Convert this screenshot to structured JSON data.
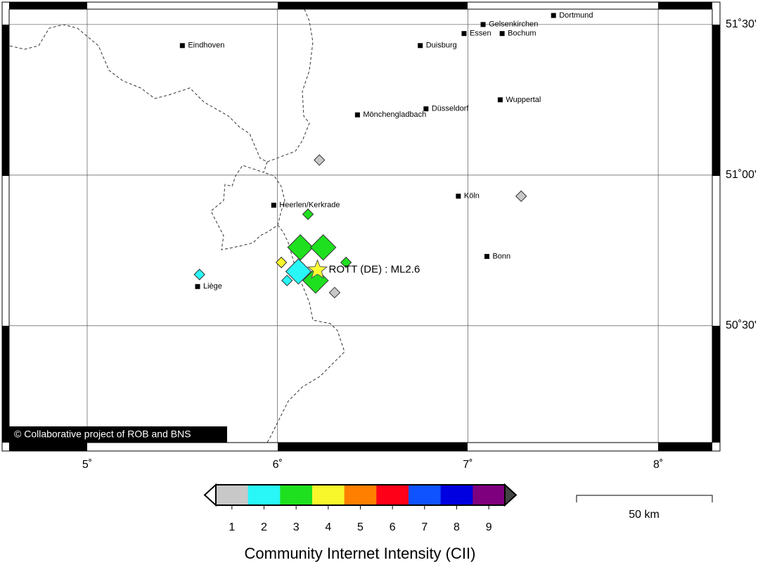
{
  "map": {
    "xlim": [
      4.59,
      8.284
    ],
    "ylim": [
      50.112,
      51.551
    ],
    "xticks": [
      {
        "value": 5,
        "label": "5˚"
      },
      {
        "value": 6,
        "label": "6˚"
      },
      {
        "value": 7,
        "label": "7˚"
      },
      {
        "value": 8,
        "label": "8˚"
      }
    ],
    "yticks": [
      {
        "value": 51.5,
        "label": "51˚30'"
      },
      {
        "value": 51,
        "label": "51˚00'"
      },
      {
        "value": 50.5,
        "label": "50˚30'"
      }
    ],
    "grid": true,
    "cities": [
      {
        "name": "Dortmund",
        "lon": 7.45,
        "lat": 51.53
      },
      {
        "name": "Gelsenkirchen",
        "lon": 7.08,
        "lat": 51.5
      },
      {
        "name": "Essen",
        "lon": 6.98,
        "lat": 51.47
      },
      {
        "name": "Bochum",
        "lon": 7.18,
        "lat": 51.47
      },
      {
        "name": "Eindhoven",
        "lon": 5.5,
        "lat": 51.43
      },
      {
        "name": "Duisburg",
        "lon": 6.75,
        "lat": 51.43
      },
      {
        "name": "Wuppertal",
        "lon": 7.17,
        "lat": 51.25
      },
      {
        "name": "Düsseldorf",
        "lon": 6.78,
        "lat": 51.22
      },
      {
        "name": "Mönchengladbach",
        "lon": 6.42,
        "lat": 51.2
      },
      {
        "name": "Köln",
        "lon": 6.95,
        "lat": 50.93
      },
      {
        "name": "Heerlen/Kerkrade",
        "lon": 5.98,
        "lat": 50.9
      },
      {
        "name": "Bonn",
        "lon": 7.1,
        "lat": 50.73
      },
      {
        "name": "Liège",
        "lon": 5.58,
        "lat": 50.63
      }
    ],
    "reports": [
      {
        "lon": 6.22,
        "lat": 51.05,
        "intensity": 1,
        "large": false
      },
      {
        "lon": 7.28,
        "lat": 50.93,
        "intensity": 1,
        "large": false
      },
      {
        "lon": 6.16,
        "lat": 50.87,
        "intensity": 3,
        "large": false
      },
      {
        "lon": 6.12,
        "lat": 50.76,
        "intensity": 3,
        "large": true
      },
      {
        "lon": 6.24,
        "lat": 50.76,
        "intensity": 3,
        "large": true
      },
      {
        "lon": 6.36,
        "lat": 50.71,
        "intensity": 3,
        "large": false
      },
      {
        "lon": 6.02,
        "lat": 50.71,
        "intensity": 4,
        "large": false
      },
      {
        "lon": 5.59,
        "lat": 50.67,
        "intensity": 2,
        "large": false
      },
      {
        "lon": 6.2,
        "lat": 50.65,
        "intensity": 3,
        "large": true
      },
      {
        "lon": 6.11,
        "lat": 50.68,
        "intensity": 2,
        "large": true
      },
      {
        "lon": 6.05,
        "lat": 50.65,
        "intensity": 2,
        "large": false
      },
      {
        "lon": 6.3,
        "lat": 50.61,
        "intensity": 1,
        "large": false
      }
    ],
    "epicenter": {
      "label": "ROTT (DE) : ML2.6",
      "lon": 6.21,
      "lat": 50.685
    },
    "credit": "© Collaborative project of ROB and BNS",
    "colorbar": {
      "title": "Community Internet Intensity (CII)",
      "levels": [
        {
          "value": 1,
          "color": "#c8c8c8"
        },
        {
          "value": 2,
          "color": "#29f7f7"
        },
        {
          "value": 3,
          "color": "#1fe01f"
        },
        {
          "value": 4,
          "color": "#f7f72c"
        },
        {
          "value": 5,
          "color": "#ff7f00"
        },
        {
          "value": 6,
          "color": "#ff0019"
        },
        {
          "value": 7,
          "color": "#0f52ff"
        },
        {
          "value": 8,
          "color": "#0000e0"
        },
        {
          "value": 9,
          "color": "#7f007f"
        }
      ]
    },
    "scalebar": {
      "label": "50 km"
    }
  }
}
